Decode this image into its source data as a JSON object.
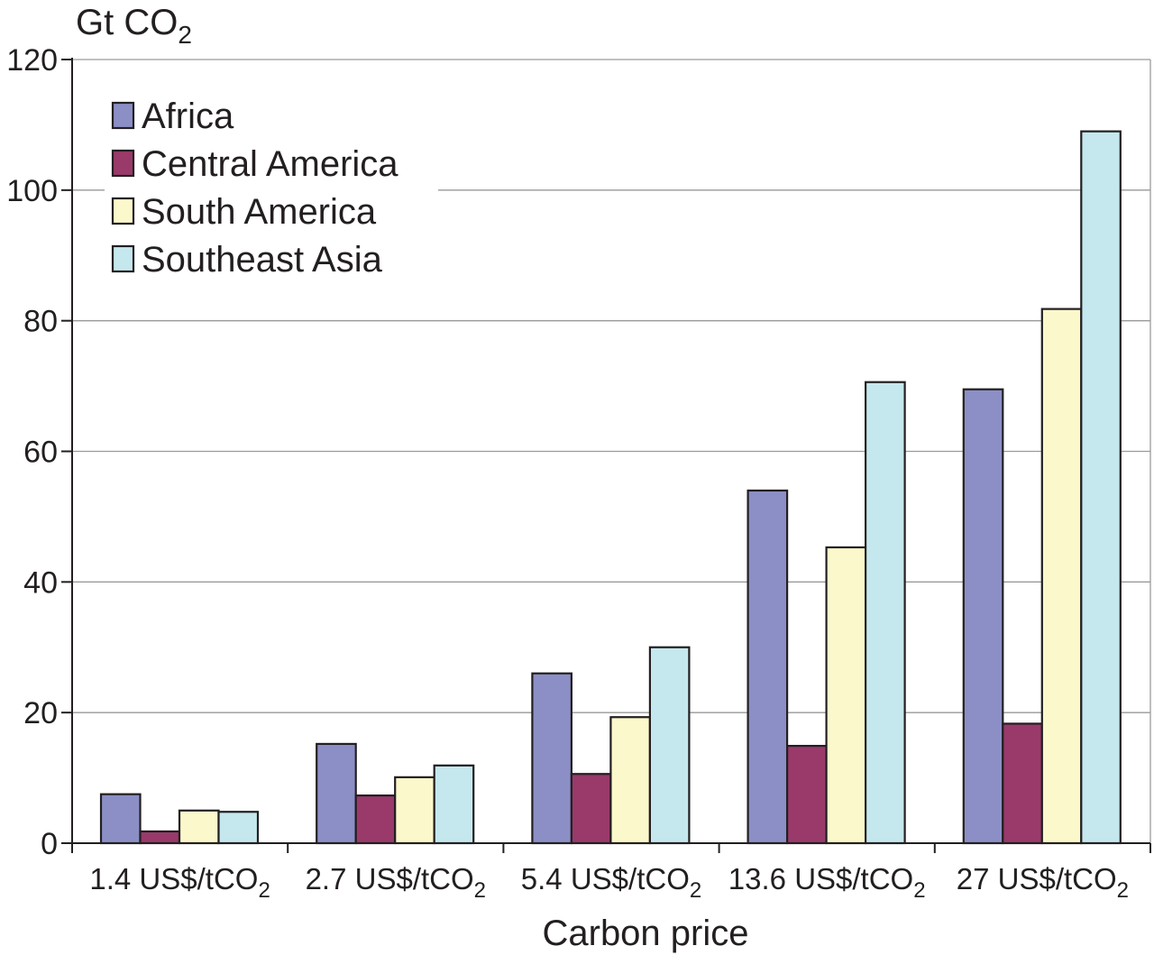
{
  "chart_data": {
    "type": "bar",
    "ylabel": "Gt CO",
    "ylabel_sub": "2",
    "xlabel": "Carbon price",
    "ylim": [
      0,
      120
    ],
    "yticks": [
      0,
      20,
      40,
      60,
      80,
      100,
      120
    ],
    "grid": true,
    "legend_position": "top-left",
    "categories": [
      {
        "main": "1.4 US$/tCO",
        "sub": "2"
      },
      {
        "main": "2.7 US$/tCO",
        "sub": "2"
      },
      {
        "main": "5.4 US$/tCO",
        "sub": "2"
      },
      {
        "main": "13.6 US$/tCO",
        "sub": "2"
      },
      {
        "main": "27 US$/tCO",
        "sub": "2"
      }
    ],
    "series": [
      {
        "name": "Africa",
        "color": "#8b8fc6",
        "values": [
          7.5,
          15.2,
          26.0,
          54.0,
          69.5
        ]
      },
      {
        "name": "Central America",
        "color": "#993a6b",
        "values": [
          1.8,
          7.3,
          10.6,
          14.9,
          18.3
        ]
      },
      {
        "name": "South America",
        "color": "#fbf8cb",
        "values": [
          5.0,
          10.1,
          19.3,
          45.3,
          81.8
        ]
      },
      {
        "name": "Southeast Asia",
        "color": "#c4e8ee",
        "values": [
          4.8,
          11.9,
          30.0,
          70.6,
          109.0
        ]
      }
    ]
  }
}
